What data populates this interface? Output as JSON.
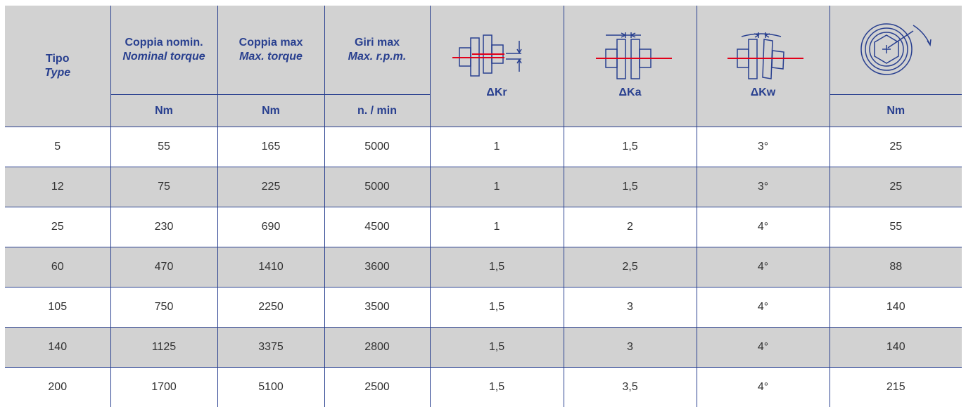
{
  "columns": {
    "tipo": {
      "label": "Tipo",
      "label_en": "Type"
    },
    "nominal": {
      "label": "Coppia nomin.",
      "label_en": "Nominal torque",
      "unit": "Nm"
    },
    "max_torque": {
      "label": "Coppia max",
      "label_en": "Max. torque",
      "unit": "Nm"
    },
    "max_rpm": {
      "label": "Giri max",
      "label_en": "Max. r.p.m.",
      "unit": "n. / min"
    },
    "kr": {
      "symbol": "ΔKr",
      "icon": "radial-misalignment-icon"
    },
    "ka": {
      "symbol": "ΔKa",
      "icon": "axial-misalignment-icon"
    },
    "kw": {
      "symbol": "ΔKw",
      "icon": "angular-misalignment-icon"
    },
    "screw": {
      "icon": "screw-tightening-torque-icon",
      "unit": "Nm"
    }
  },
  "rows": [
    [
      "5",
      "55",
      "165",
      "5000",
      "1",
      "1,5",
      "3°",
      "25"
    ],
    [
      "12",
      "75",
      "225",
      "5000",
      "1",
      "1,5",
      "3°",
      "25"
    ],
    [
      "25",
      "230",
      "690",
      "4500",
      "1",
      "2",
      "4°",
      "55"
    ],
    [
      "60",
      "470",
      "1410",
      "3600",
      "1,5",
      "2,5",
      "4°",
      "88"
    ],
    [
      "105",
      "750",
      "2250",
      "3500",
      "1,5",
      "3",
      "4°",
      "140"
    ],
    [
      "140",
      "1125",
      "3375",
      "2800",
      "1,5",
      "3",
      "4°",
      "140"
    ],
    [
      "200",
      "1700",
      "5100",
      "2500",
      "1,5",
      "3,5",
      "4°",
      "215"
    ]
  ],
  "colors": {
    "header_bg": "#d2d2d2",
    "header_text": "#283f8f",
    "line": "#283f8f",
    "axis": "#e2001a"
  }
}
